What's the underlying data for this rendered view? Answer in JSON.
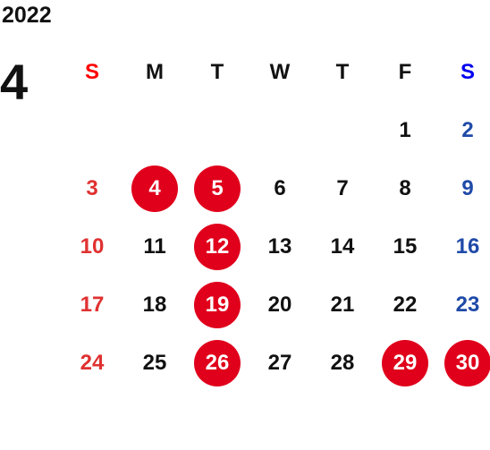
{
  "year": "2022",
  "month": "4",
  "colors": {
    "sunday": "#e03131",
    "saturday": "#1f4aa8",
    "weekday": "#111111",
    "holiday_bg": "#e0001b"
  },
  "weekdays": [
    {
      "label": "S",
      "color": "#ff0000"
    },
    {
      "label": "M",
      "color": "#111111"
    },
    {
      "label": "T",
      "color": "#111111"
    },
    {
      "label": "W",
      "color": "#111111"
    },
    {
      "label": "T",
      "color": "#111111"
    },
    {
      "label": "F",
      "color": "#111111"
    },
    {
      "label": "S",
      "color": "#0000ee"
    }
  ],
  "weeks": [
    [
      "",
      "",
      "",
      "",
      "",
      "1",
      "2"
    ],
    [
      "3",
      "4",
      "5",
      "6",
      "7",
      "8",
      "9"
    ],
    [
      "10",
      "11",
      "12",
      "13",
      "14",
      "15",
      "16"
    ],
    [
      "17",
      "18",
      "19",
      "20",
      "21",
      "22",
      "23"
    ],
    [
      "24",
      "25",
      "26",
      "27",
      "28",
      "29",
      "30"
    ]
  ],
  "highlighted_days": [
    "4",
    "5",
    "12",
    "19",
    "26",
    "29",
    "30"
  ]
}
